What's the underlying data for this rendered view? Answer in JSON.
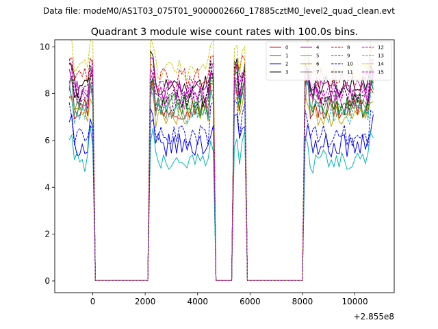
{
  "figure": {
    "suptitle": "Data file: modeM0/AS1T03_075T01_9000002660_17885cztM0_level2_quad_clean.evt"
  },
  "chart_data": {
    "type": "line",
    "title": "Quadrant 3 module wise count rates with 100.0s bins.",
    "xlabel": "",
    "ylabel": "",
    "x_offset_label": "+2.855e8",
    "xlim": [
      -1450,
      11500
    ],
    "ylim": [
      -0.5,
      10.3
    ],
    "xticks": [
      0,
      2000,
      4000,
      6000,
      8000,
      10000
    ],
    "yticks": [
      0,
      2,
      4,
      6,
      8,
      10
    ],
    "legend": {
      "position": "top-right",
      "columns": 4
    },
    "segments": [
      {
        "kind": "on",
        "start": -900,
        "end": 0
      },
      {
        "kind": "drop",
        "start": 0,
        "end": 100
      },
      {
        "kind": "off",
        "start": 100,
        "end": 2100
      },
      {
        "kind": "rise",
        "start": 2100,
        "end": 2200
      },
      {
        "kind": "on",
        "start": 2200,
        "end": 4600
      },
      {
        "kind": "drop",
        "start": 4600,
        "end": 4700
      },
      {
        "kind": "off",
        "start": 4700,
        "end": 5300
      },
      {
        "kind": "rise",
        "start": 5300,
        "end": 5400
      },
      {
        "kind": "on",
        "start": 5400,
        "end": 5800
      },
      {
        "kind": "drop",
        "start": 5800,
        "end": 5900
      },
      {
        "kind": "off",
        "start": 5900,
        "end": 8000
      },
      {
        "kind": "rise",
        "start": 8000,
        "end": 8100
      },
      {
        "kind": "on",
        "start": 8100,
        "end": 10700
      },
      {
        "kind": "drop",
        "start": 10700,
        "end": 10800
      }
    ],
    "series": [
      {
        "name": "0",
        "color": "#e00000",
        "dash": false,
        "level": 7.4
      },
      {
        "name": "1",
        "color": "#008000",
        "dash": false,
        "level": 7.5
      },
      {
        "name": "2",
        "color": "#0000ff",
        "dash": false,
        "level": 5.8
      },
      {
        "name": "3",
        "color": "#000000",
        "dash": false,
        "level": 8.3
      },
      {
        "name": "4",
        "color": "#c000c0",
        "dash": false,
        "level": 8.1
      },
      {
        "name": "5",
        "color": "#00b4b4",
        "dash": false,
        "level": 5.1
      },
      {
        "name": "6",
        "color": "#c8a000",
        "dash": false,
        "level": 7.0
      },
      {
        "name": "7",
        "color": "#808080",
        "dash": false,
        "level": 7.4
      },
      {
        "name": "8",
        "color": "#e00000",
        "dash": true,
        "level": 8.6
      },
      {
        "name": "9",
        "color": "#008000",
        "dash": true,
        "level": 7.6
      },
      {
        "name": "10",
        "color": "#0000ff",
        "dash": true,
        "level": 6.2
      },
      {
        "name": "11",
        "color": "#000000",
        "dash": true,
        "level": 7.9
      },
      {
        "name": "12",
        "color": "#c000c0",
        "dash": true,
        "level": 8.1
      },
      {
        "name": "13",
        "color": "#00b4b4",
        "dash": true,
        "level": 7.2
      },
      {
        "name": "14",
        "color": "#c8c800",
        "dash": true,
        "level": 9.1
      },
      {
        "name": "15",
        "color": "#c000c0",
        "dash": true,
        "level": 7.8
      }
    ]
  }
}
